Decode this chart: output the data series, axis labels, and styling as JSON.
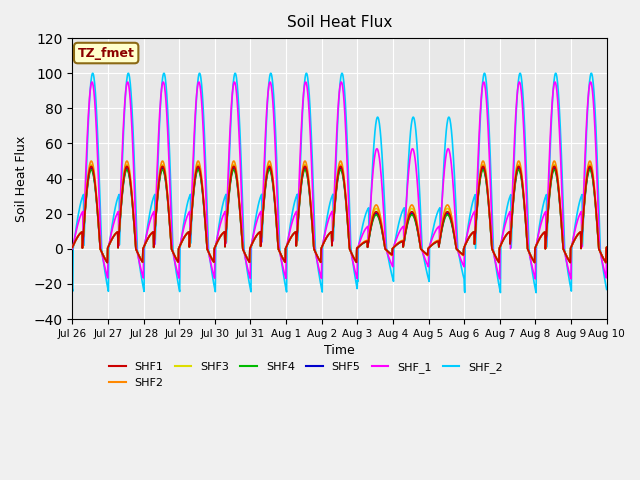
{
  "title": "Soil Heat Flux",
  "xlabel": "Time",
  "ylabel": "Soil Heat Flux",
  "ylim": [
    -40,
    120
  ],
  "yticks": [
    -40,
    -20,
    0,
    20,
    40,
    60,
    80,
    100,
    120
  ],
  "series_colors": {
    "SHF1": "#cc0000",
    "SHF2": "#ff8800",
    "SHF3": "#dddd00",
    "SHF4": "#00bb00",
    "SHF5": "#0000cc",
    "SHF_1": "#ff00ff",
    "SHF_2": "#00ccff"
  },
  "legend_label": "TZ_fmet",
  "axes_bg": "#e8e8e8",
  "xtick_labels": [
    "Jul 26",
    "Jul 27",
    "Jul 28",
    "Jul 29",
    "Jul 30",
    "Jul 31",
    "Aug 1",
    "Aug 2",
    "Aug 3",
    "Aug 4",
    "Aug 5",
    "Aug 6",
    "Aug 7",
    "Aug 8",
    "Aug 9",
    "Aug 10"
  ],
  "n_days": 15
}
